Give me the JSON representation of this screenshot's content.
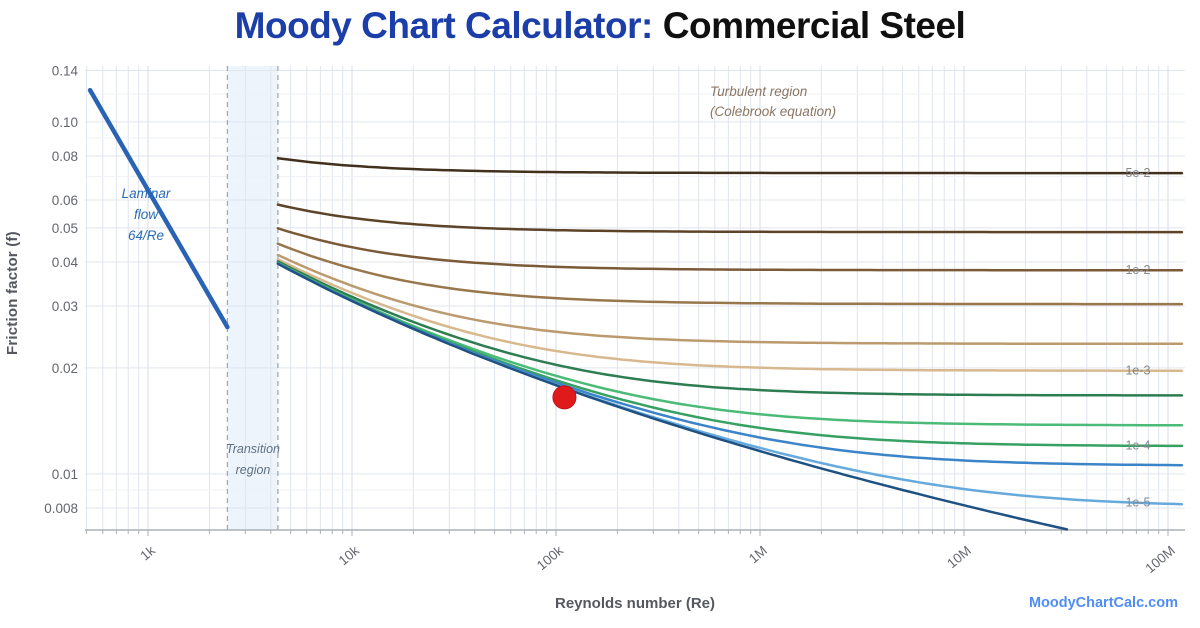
{
  "title": {
    "prefix": "Moody Chart Calculator:",
    "subject": "Commercial Steel"
  },
  "watermark": "MoodyChartCalc.com",
  "axes": {
    "x": {
      "label": "Reynolds number (Re)",
      "ticks": [
        {
          "value": 1000,
          "label": "1k"
        },
        {
          "value": 10000,
          "label": "10k"
        },
        {
          "value": 100000,
          "label": "100k"
        },
        {
          "value": 1000000,
          "label": "1M"
        },
        {
          "value": 10000000,
          "label": "10M"
        },
        {
          "value": 100000000,
          "label": "100M"
        }
      ]
    },
    "y": {
      "label": "Friction factor (f)",
      "ticks": [
        {
          "value": 0.14,
          "label": "0.14"
        },
        {
          "value": 0.1,
          "label": "0.10"
        },
        {
          "value": 0.08,
          "label": "0.08"
        },
        {
          "value": 0.06,
          "label": "0.06"
        },
        {
          "value": 0.05,
          "label": "0.05"
        },
        {
          "value": 0.04,
          "label": "0.04"
        },
        {
          "value": 0.03,
          "label": "0.03"
        },
        {
          "value": 0.02,
          "label": "0.02"
        },
        {
          "value": 0.01,
          "label": "0.01"
        },
        {
          "value": 0.008,
          "label": "0.008"
        }
      ],
      "minor_gridlines": [
        0.009,
        0.07,
        0.09,
        0.12
      ]
    }
  },
  "regions": {
    "laminar": {
      "lines": [
        "Laminar",
        "flow",
        "64/Re"
      ]
    },
    "transition": {
      "lines": [
        "Transition",
        "region"
      ],
      "re_start": 2450,
      "re_end": 4333
    },
    "turbulent": {
      "lines": [
        "Turbulent region",
        "(Colebrook equation)"
      ]
    }
  },
  "chart_data": {
    "type": "line",
    "title": "Moody Chart Calculator: Commercial Steel",
    "xlabel": "Reynolds number (Re)",
    "ylabel": "Friction factor (f)",
    "x_axis": {
      "scale": "log",
      "min": 490,
      "max": 117000000
    },
    "y_axis": {
      "scale": "log",
      "min": 0.0069,
      "max": 0.144
    },
    "grid": true,
    "laminar_line": {
      "formula": "f = 64/Re",
      "re_range": [
        520,
        2450
      ],
      "color": "#2a63b4"
    },
    "transition_band": {
      "re_range": [
        2450,
        4333
      ],
      "fill": "#e8f1fb",
      "border": "#9fabbc"
    },
    "turbulent_model": "Colebrook equation",
    "series": [
      {
        "relative_roughness": 0.05,
        "label": "5e-2",
        "color": "#42301e"
      },
      {
        "relative_roughness": 0.02,
        "label": "",
        "color": "#5d4429"
      },
      {
        "relative_roughness": 0.01,
        "label": "1e-2",
        "color": "#7b5a37"
      },
      {
        "relative_roughness": 0.005,
        "label": "",
        "color": "#99774d"
      },
      {
        "relative_roughness": 0.002,
        "label": "",
        "color": "#bb9a6e"
      },
      {
        "relative_roughness": 0.001,
        "label": "1e-3",
        "color": "#d8b88e"
      },
      {
        "relative_roughness": 0.0005,
        "label": "",
        "color": "#2e7d52"
      },
      {
        "relative_roughness": 0.0002,
        "label": "",
        "color": "#4cbb78"
      },
      {
        "relative_roughness": 0.0001,
        "label": "1e-4",
        "color": "#36a162"
      },
      {
        "relative_roughness": 5e-05,
        "label": "",
        "color": "#3b84c8"
      },
      {
        "relative_roughness": 1e-05,
        "label": "1e-5",
        "color": "#66aadd"
      },
      {
        "relative_roughness": 0,
        "label": "",
        "color": "#1f5183"
      }
    ],
    "marker": {
      "re": 110000,
      "friction_factor": 0.0165,
      "color": "#e01a1a"
    }
  },
  "colors": {
    "title_accent": "#1c3ea8",
    "title_main": "#101010",
    "grid_major": "#e0e5ee",
    "grid_minor": "#eef1f6",
    "grid_decade": "#d4dbe8",
    "axis_line": "#aab0b8",
    "tick_text": "#63666c",
    "curve_label_text": "#85898f",
    "watermark": "#4f8df5"
  }
}
